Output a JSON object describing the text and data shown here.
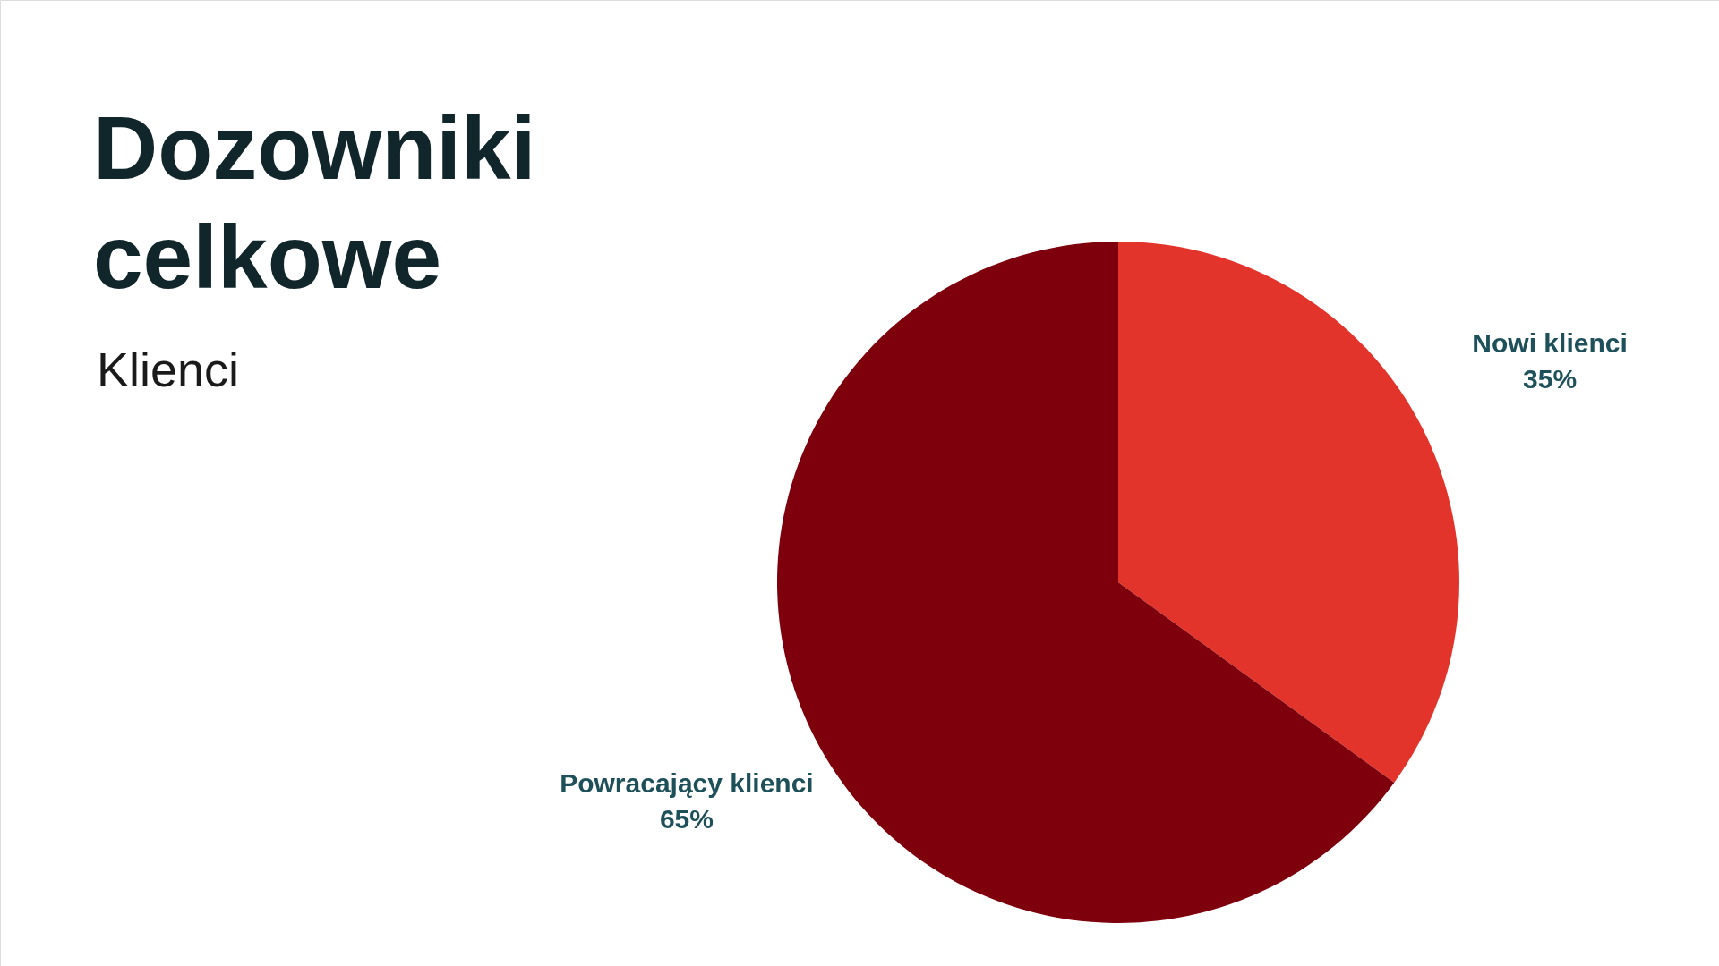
{
  "chart_data": {
    "type": "pie",
    "title": "Dozowniki celkowe",
    "subtitle": "Klienci",
    "categories": [
      "Nowi klienci",
      "Powracający klienci"
    ],
    "values": [
      35,
      65
    ],
    "colors": [
      "#e3342c",
      "#7d000c"
    ],
    "value_labels": [
      "35%",
      "65%"
    ]
  }
}
